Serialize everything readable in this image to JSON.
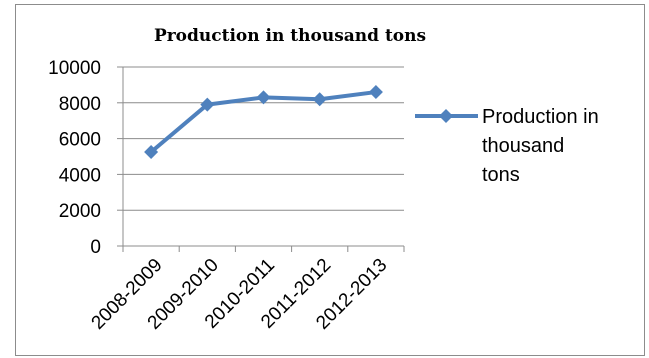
{
  "chart_data": {
    "type": "line",
    "title": "Production in thousand tons",
    "categories": [
      "2008-2009",
      "2009-2010",
      "2010-2011",
      "2011-2012",
      "2012-2013"
    ],
    "series": [
      {
        "name": "Production in thousand tons",
        "values": [
          5250,
          7900,
          8300,
          8200,
          8600
        ],
        "color": "#4f81bd",
        "marker": "diamond"
      }
    ],
    "y_ticks": [
      "0",
      "2000",
      "4000",
      "6000",
      "8000",
      "10000"
    ],
    "ylim": [
      0,
      10000
    ],
    "grid": "horizontal",
    "legend_position": "right",
    "legend_lines": [
      "Production in",
      "thousand",
      "tons"
    ],
    "xlabel": "",
    "ylabel": ""
  }
}
